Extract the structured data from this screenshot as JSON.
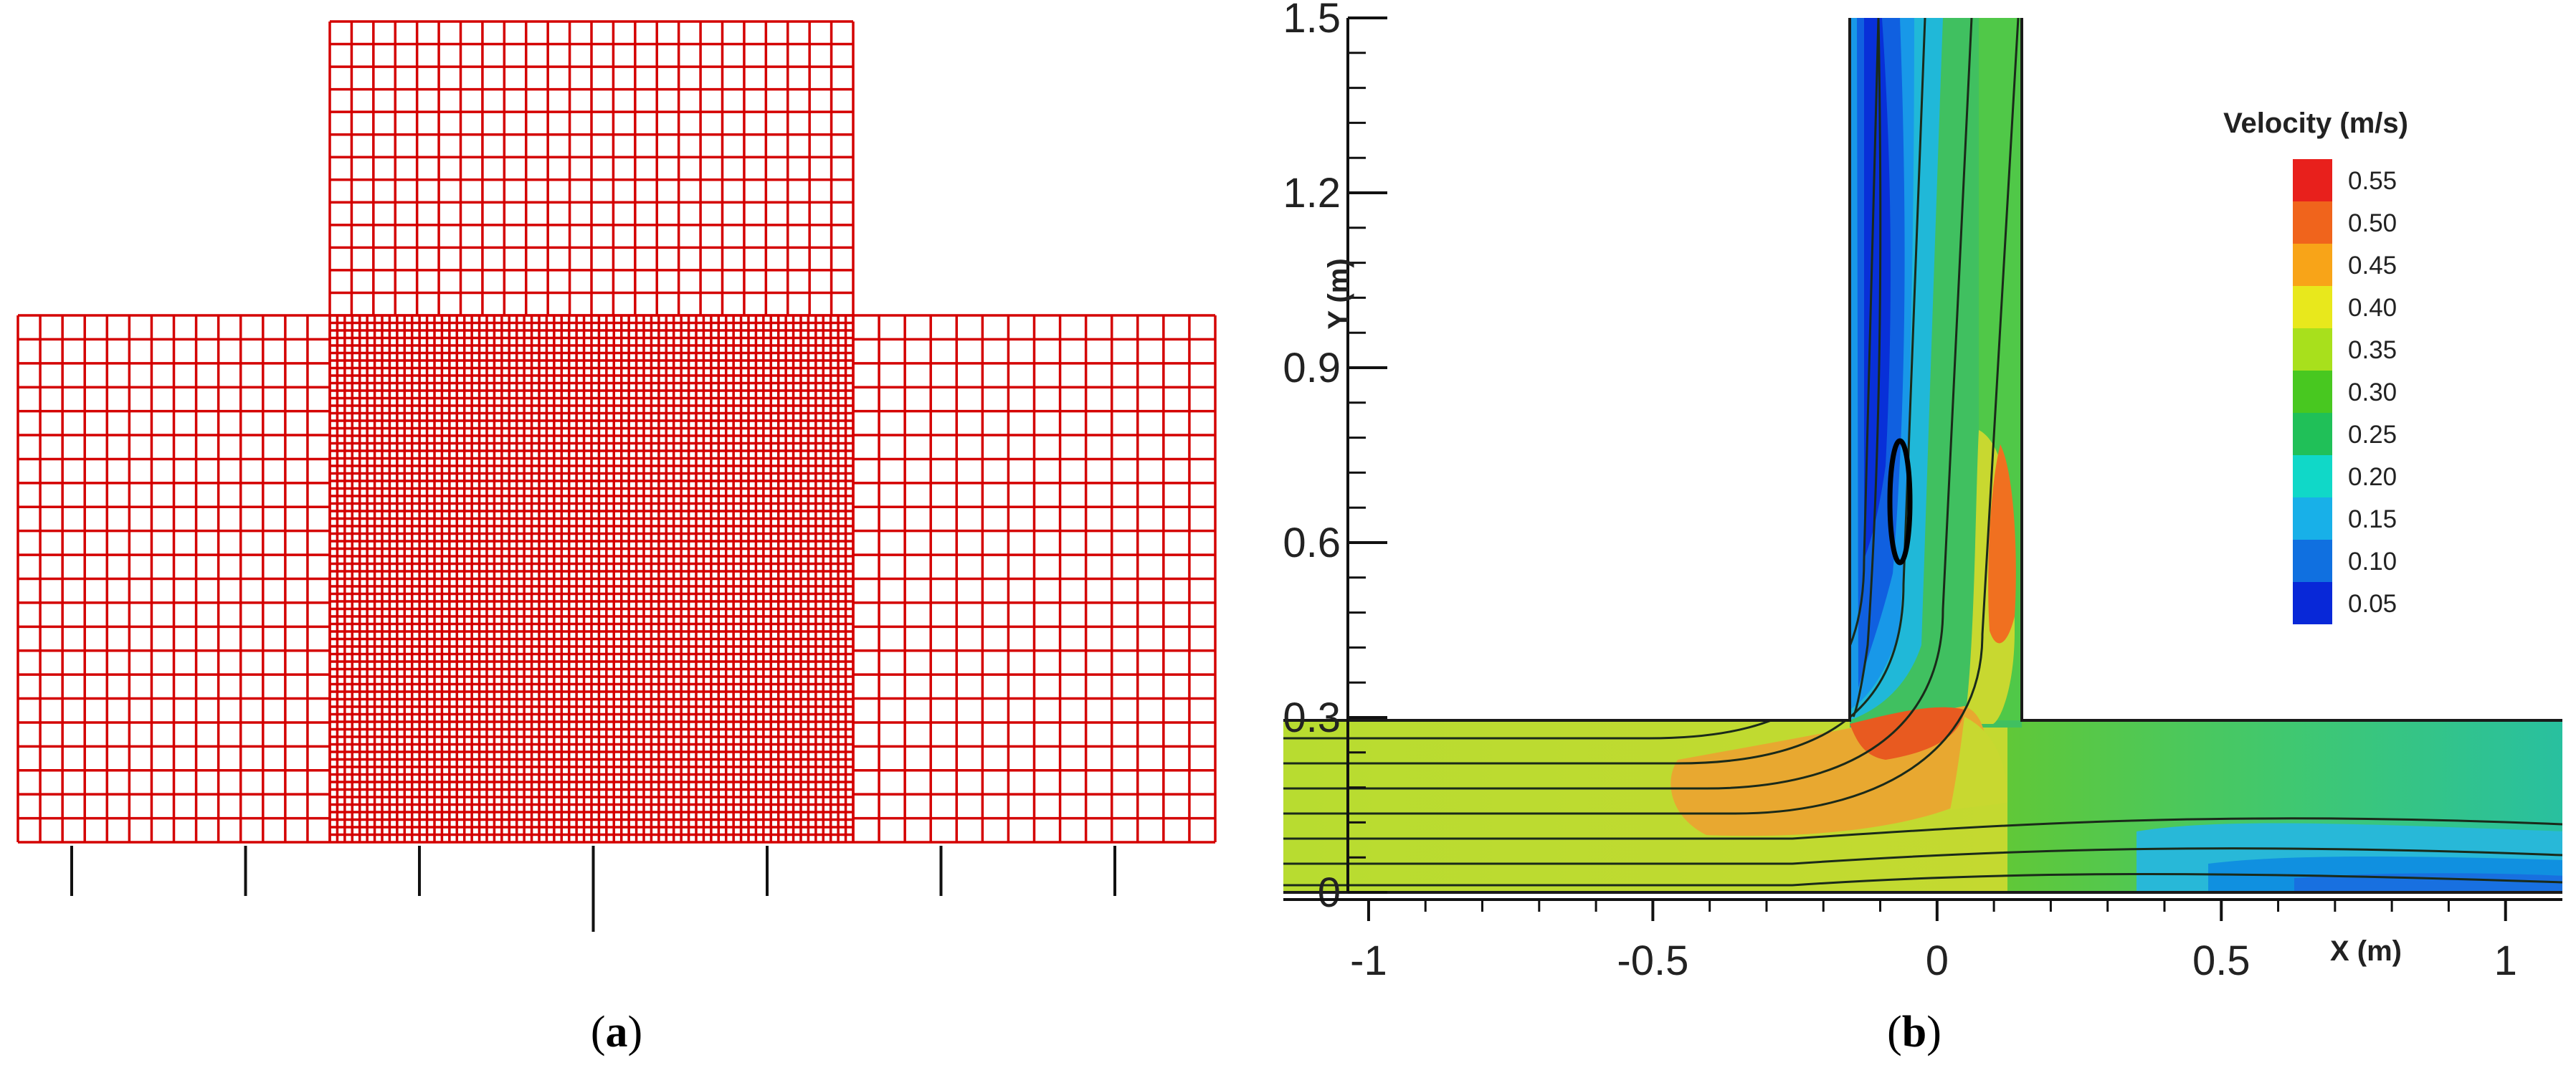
{
  "panels": {
    "a": {
      "caption_open": "(",
      "caption_letter": "a",
      "caption_close": ")"
    },
    "b": {
      "caption_open": "(",
      "caption_letter": "b",
      "caption_close": ")"
    }
  },
  "chart_data": [
    {
      "type": "diagram",
      "panel": "a",
      "description_visible": "mesh",
      "mesh_color": "#d40000",
      "x_ticks_count": 7
    },
    {
      "type": "heatmap",
      "panel": "b",
      "xlabel": "X (m)",
      "ylabel": "Y (m)",
      "xlim": [
        -1.15,
        1.1
      ],
      "ylim": [
        0,
        1.5
      ],
      "x_ticks": [
        -1,
        -0.5,
        0,
        0.5,
        1
      ],
      "x_tick_labels": [
        "-1",
        "-0.5",
        "0",
        "0.5",
        "1"
      ],
      "y_ticks": [
        0,
        0.3,
        0.6,
        0.9,
        1.2,
        1.5
      ],
      "y_tick_labels": [
        "0",
        "0.3",
        "0.6",
        "0.9",
        "1.2",
        "1.5"
      ],
      "legend": {
        "title": "Velocity (m/s)",
        "levels": [
          "0.55",
          "0.50",
          "0.45",
          "0.40",
          "0.35",
          "0.30",
          "0.25",
          "0.20",
          "0.15",
          "0.10",
          "0.05"
        ],
        "colors": [
          "#e8201c",
          "#f0641c",
          "#f8a418",
          "#e8e81c",
          "#a8e01c",
          "#48c820",
          "#20c058",
          "#10d8c8",
          "#18b0e8",
          "#1070e0",
          "#0828d8"
        ]
      },
      "channel": {
        "main_x": [
          -1.15,
          1.1
        ],
        "main_y": [
          0,
          0.3
        ],
        "branch_x": [
          -0.15,
          0.15
        ],
        "branch_y": [
          0.3,
          1.5
        ]
      }
    }
  ]
}
